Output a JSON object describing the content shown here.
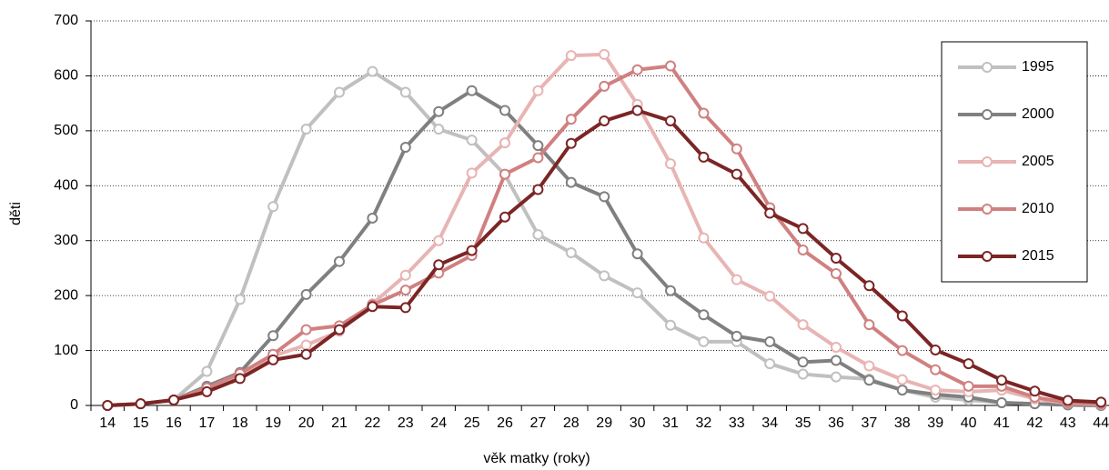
{
  "chart_data": {
    "type": "line",
    "x_label": "věk matky (roky)",
    "y_label": "děti",
    "categories": [
      "14",
      "15",
      "16",
      "17",
      "18",
      "19",
      "20",
      "21",
      "22",
      "23",
      "24",
      "25",
      "26",
      "27",
      "28",
      "29",
      "30",
      "31",
      "32",
      "33",
      "34",
      "35",
      "36",
      "37",
      "38",
      "39",
      "40",
      "41",
      "42",
      "43",
      "44"
    ],
    "ylim": [
      0,
      700
    ],
    "yticks": [
      0,
      100,
      200,
      300,
      400,
      500,
      600,
      700
    ],
    "grid": true,
    "legend": "upper right",
    "series": [
      {
        "name": "1995",
        "color": "#c0c0c0",
        "values": [
          0,
          3,
          10,
          62,
          193,
          362,
          503,
          570,
          608,
          570,
          503,
          483,
          420,
          311,
          278,
          236,
          205,
          146,
          116,
          116,
          76,
          57,
          52,
          48,
          28,
          15,
          10,
          5,
          3,
          1,
          0
        ]
      },
      {
        "name": "2000",
        "color": "#808080",
        "values": [
          0,
          3,
          10,
          35,
          60,
          127,
          202,
          262,
          341,
          470,
          535,
          573,
          537,
          473,
          406,
          380,
          276,
          209,
          165,
          126,
          116,
          79,
          82,
          46,
          28,
          20,
          15,
          5,
          3,
          1,
          0
        ]
      },
      {
        "name": "2005",
        "color": "#e8b4b4",
        "values": [
          0,
          3,
          10,
          30,
          55,
          90,
          110,
          135,
          185,
          237,
          300,
          423,
          478,
          573,
          637,
          639,
          548,
          440,
          305,
          229,
          199,
          147,
          106,
          72,
          47,
          28,
          25,
          28,
          12,
          4,
          2
        ]
      },
      {
        "name": "2010",
        "color": "#d08080",
        "values": [
          0,
          3,
          10,
          32,
          58,
          93,
          138,
          145,
          183,
          210,
          241,
          273,
          421,
          451,
          521,
          581,
          611,
          618,
          532,
          467,
          360,
          283,
          240,
          147,
          100,
          65,
          35,
          35,
          15,
          5,
          3
        ]
      },
      {
        "name": "2015",
        "color": "#7b2525",
        "values": [
          0,
          3,
          10,
          25,
          49,
          83,
          93,
          138,
          180,
          178,
          256,
          282,
          343,
          393,
          477,
          518,
          537,
          518,
          452,
          421,
          350,
          322,
          268,
          218,
          163,
          101,
          76,
          46,
          26,
          9,
          6
        ]
      }
    ]
  }
}
